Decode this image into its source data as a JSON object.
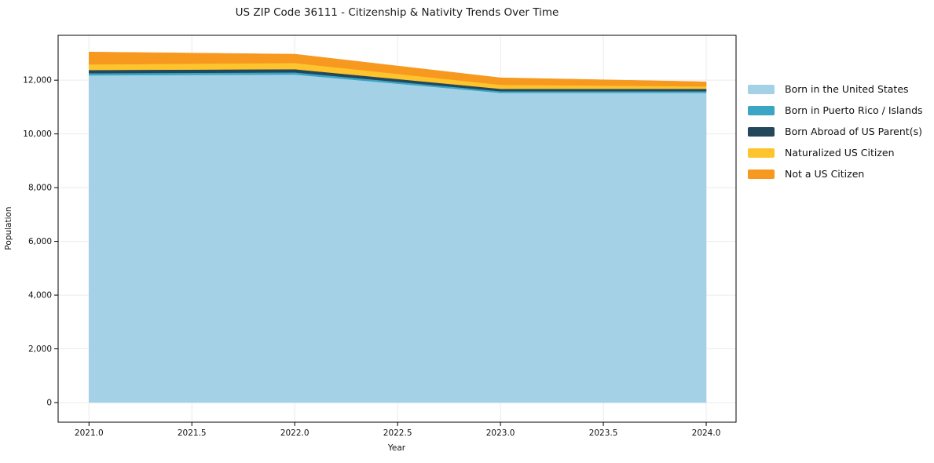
{
  "chart_data": {
    "type": "area",
    "stacked": true,
    "title": "US ZIP Code 36111 - Citizenship & Nativity Trends Over Time",
    "xlabel": "Year",
    "ylabel": "Population",
    "x": [
      2021,
      2022,
      2023,
      2024
    ],
    "series": [
      {
        "name": "Born in the United States",
        "color": "#a5d1e6",
        "values": [
          12180,
          12210,
          11530,
          11530
        ]
      },
      {
        "name": "Born in Puerto Rico / Islands",
        "color": "#3aa5c4",
        "values": [
          80,
          80,
          60,
          60
        ]
      },
      {
        "name": "Born Abroad of US Parent(s)",
        "color": "#23485c",
        "values": [
          120,
          120,
          90,
          90
        ]
      },
      {
        "name": "Naturalized US Citizen",
        "color": "#fdc42e",
        "values": [
          210,
          230,
          150,
          90
        ]
      },
      {
        "name": "Not a US Citizen",
        "color": "#f7981f",
        "values": [
          460,
          330,
          260,
          170
        ]
      }
    ],
    "x_ticks": {
      "values": [
        2021,
        2021.5,
        2022,
        2022.5,
        2023,
        2023.5,
        2024
      ],
      "labels": [
        "2021.0",
        "2021.5",
        "2022.0",
        "2022.5",
        "2023.0",
        "2023.5",
        "2024.0"
      ]
    },
    "y_ticks": {
      "values": [
        0,
        2000,
        4000,
        6000,
        8000,
        10000,
        12000
      ],
      "labels": [
        "0",
        "2,000",
        "4,000",
        "6,000",
        "8,000",
        "10,000",
        "12,000"
      ]
    },
    "xlim": [
      2020.85,
      2024.145
    ],
    "ylim": [
      -730,
      13670
    ],
    "grid": true,
    "grid_color": "#ebebeb",
    "spine_color": "#000000",
    "background": "#ffffff",
    "legend_position": "right-outside"
  }
}
